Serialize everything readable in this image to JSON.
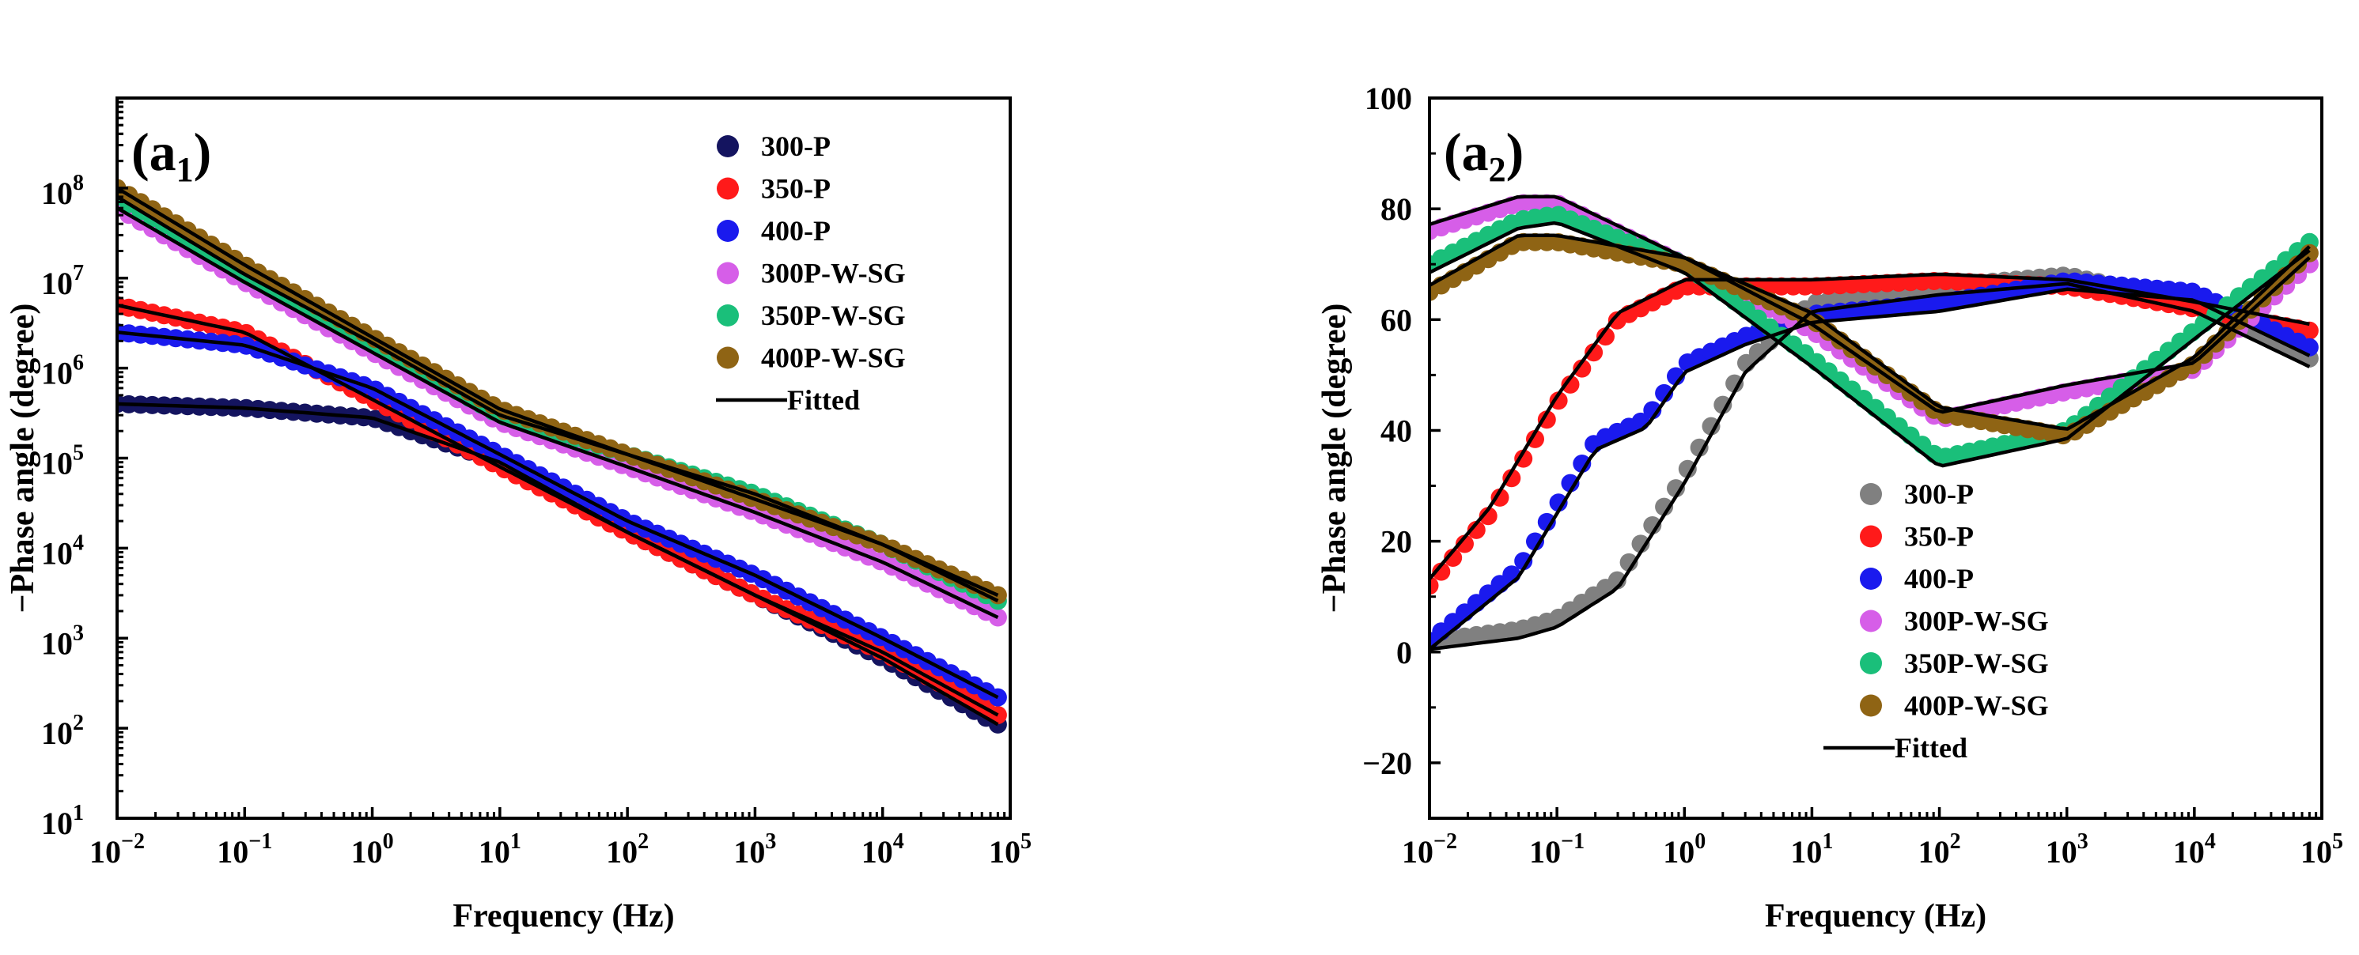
{
  "chart_data": [
    {
      "panel": "(a1)",
      "panel_label": {
        "main": "(a",
        "sub": "1",
        "close": ")"
      },
      "type": "scatter",
      "xlabel": "Frequency (Hz)",
      "ylabel": "−Phase angle (degree)",
      "xscale": "log",
      "yscale": "log",
      "xlim": [
        0.01,
        100000
      ],
      "ylim": [
        10,
        1000000000
      ],
      "x_ticks": [
        {
          "exp": -2,
          "base": "10",
          "sup": "−2"
        },
        {
          "exp": -1,
          "base": "10",
          "sup": "−1"
        },
        {
          "exp": 0,
          "base": "10",
          "sup": "0"
        },
        {
          "exp": 1,
          "base": "10",
          "sup": "1"
        },
        {
          "exp": 2,
          "base": "10",
          "sup": "2"
        },
        {
          "exp": 3,
          "base": "10",
          "sup": "3"
        },
        {
          "exp": 4,
          "base": "10",
          "sup": "4"
        },
        {
          "exp": 5,
          "base": "10",
          "sup": "5"
        }
      ],
      "y_ticks": [
        {
          "exp": 1,
          "base": "10",
          "sup": "1"
        },
        {
          "exp": 2,
          "base": "10",
          "sup": "2"
        },
        {
          "exp": 3,
          "base": "10",
          "sup": "3"
        },
        {
          "exp": 4,
          "base": "10",
          "sup": "4"
        },
        {
          "exp": 5,
          "base": "10",
          "sup": "5"
        },
        {
          "exp": 6,
          "base": "10",
          "sup": "6"
        },
        {
          "exp": 7,
          "base": "10",
          "sup": "7"
        },
        {
          "exp": 8,
          "base": "10",
          "sup": "8"
        }
      ],
      "legend_position": "top-right",
      "series": [
        {
          "name": "300-P",
          "color": "#14145f",
          "points": [
            [
              0.01,
              400000
            ],
            [
              0.1,
              360000
            ],
            [
              1,
              280000
            ],
            [
              10,
              90000
            ],
            [
              100,
              15000
            ],
            [
              1000,
              3000
            ],
            [
              10000,
              600
            ],
            [
              80000,
              110
            ]
          ]
        },
        {
          "name": "350-P",
          "color": "#ff1a1a",
          "points": [
            [
              0.01,
              5000000
            ],
            [
              0.1,
              2500000
            ],
            [
              1,
              450000
            ],
            [
              10,
              80000
            ],
            [
              100,
              15000
            ],
            [
              1000,
              3000
            ],
            [
              10000,
              700
            ],
            [
              80000,
              140
            ]
          ]
        },
        {
          "name": "400-P",
          "color": "#1a1aee",
          "points": [
            [
              0.01,
              2500000
            ],
            [
              0.1,
              1800000
            ],
            [
              1,
              600000
            ],
            [
              10,
              110000
            ],
            [
              100,
              20000
            ],
            [
              1000,
              5000
            ],
            [
              10000,
              1000
            ],
            [
              80000,
              220
            ]
          ]
        },
        {
          "name": "300P-W-SG",
          "color": "#d65ee8",
          "points": [
            [
              0.01,
              60000000
            ],
            [
              0.1,
              9000000
            ],
            [
              1,
              1500000
            ],
            [
              10,
              250000
            ],
            [
              100,
              80000
            ],
            [
              1000,
              25000
            ],
            [
              10000,
              7000
            ],
            [
              80000,
              1700
            ]
          ]
        },
        {
          "name": "350P-W-SG",
          "color": "#1abf7a",
          "points": [
            [
              0.01,
              80000000
            ],
            [
              0.1,
              11000000
            ],
            [
              1,
              1900000
            ],
            [
              10,
              300000
            ],
            [
              100,
              110000
            ],
            [
              1000,
              40000
            ],
            [
              10000,
              11000
            ],
            [
              80000,
              2600
            ]
          ]
        },
        {
          "name": "400P-W-SG",
          "color": "#8f6414",
          "points": [
            [
              0.01,
              100000000
            ],
            [
              0.1,
              14000000
            ],
            [
              1,
              2200000
            ],
            [
              10,
              350000
            ],
            [
              100,
              110000
            ],
            [
              1000,
              35000
            ],
            [
              10000,
              11000
            ],
            [
              80000,
              3000
            ]
          ]
        }
      ],
      "fitted_label": "Fitted",
      "fitted_color": "#000000"
    },
    {
      "panel": "(a2)",
      "panel_label": {
        "main": "(a",
        "sub": "2",
        "close": ")"
      },
      "type": "scatter",
      "xlabel": "Frequency (Hz)",
      "ylabel": "−Phase angle (degree)",
      "xscale": "log",
      "yscale": "linear",
      "xlim": [
        0.01,
        100000
      ],
      "ylim": [
        -30,
        100
      ],
      "x_ticks": [
        {
          "exp": -2,
          "base": "10",
          "sup": "−2"
        },
        {
          "exp": -1,
          "base": "10",
          "sup": "−1"
        },
        {
          "exp": 0,
          "base": "10",
          "sup": "0"
        },
        {
          "exp": 1,
          "base": "10",
          "sup": "1"
        },
        {
          "exp": 2,
          "base": "10",
          "sup": "2"
        },
        {
          "exp": 3,
          "base": "10",
          "sup": "3"
        },
        {
          "exp": 4,
          "base": "10",
          "sup": "4"
        },
        {
          "exp": 5,
          "base": "10",
          "sup": "5"
        }
      ],
      "y_ticks": [
        {
          "value": -20,
          "label": "−20"
        },
        {
          "value": 0,
          "label": "0"
        },
        {
          "value": 20,
          "label": "20"
        },
        {
          "value": 40,
          "label": "40"
        },
        {
          "value": 60,
          "label": "60"
        },
        {
          "value": 80,
          "label": "80"
        },
        {
          "value": 100,
          "label": "100"
        }
      ],
      "legend_position": "bottom-center",
      "series": [
        {
          "name": "300-P",
          "color": "#808080",
          "points": [
            [
              0.01,
              2
            ],
            [
              0.05,
              4
            ],
            [
              0.1,
              6
            ],
            [
              0.3,
              13
            ],
            [
              1,
              32
            ],
            [
              3,
              52
            ],
            [
              10,
              63
            ],
            [
              100,
              66
            ],
            [
              1000,
              68
            ],
            [
              10000,
              63
            ],
            [
              80000,
              53
            ]
          ]
        },
        {
          "name": "350-P",
          "color": "#ff1a1a",
          "points": [
            [
              0.01,
              12
            ],
            [
              0.03,
              25
            ],
            [
              0.1,
              45
            ],
            [
              0.3,
              60
            ],
            [
              1,
              66
            ],
            [
              3,
              66
            ],
            [
              10,
              66
            ],
            [
              100,
              67
            ],
            [
              1000,
              66
            ],
            [
              10000,
              62
            ],
            [
              80000,
              58
            ]
          ]
        },
        {
          "name": "400-P",
          "color": "#1a1aee",
          "points": [
            [
              0.01,
              2
            ],
            [
              0.05,
              15
            ],
            [
              0.2,
              38
            ],
            [
              0.5,
              42
            ],
            [
              1,
              52
            ],
            [
              3,
              57
            ],
            [
              10,
              61
            ],
            [
              100,
              63
            ],
            [
              1000,
              67
            ],
            [
              10000,
              65
            ],
            [
              80000,
              55
            ]
          ]
        },
        {
          "name": "300P-W-SG",
          "color": "#d65ee8",
          "points": [
            [
              0.01,
              76
            ],
            [
              0.05,
              81
            ],
            [
              0.1,
              81
            ],
            [
              1,
              70
            ],
            [
              10,
              58
            ],
            [
              100,
              42
            ],
            [
              1000,
              47
            ],
            [
              10000,
              51
            ],
            [
              80000,
              70
            ]
          ]
        },
        {
          "name": "350P-W-SG",
          "color": "#1abf7a",
          "points": [
            [
              0.01,
              70
            ],
            [
              0.05,
              78
            ],
            [
              0.1,
              79
            ],
            [
              1,
              70
            ],
            [
              10,
              53
            ],
            [
              100,
              35
            ],
            [
              1000,
              40
            ],
            [
              10000,
              58
            ],
            [
              80000,
              74
            ]
          ]
        },
        {
          "name": "400P-W-SG",
          "color": "#8f6414",
          "points": [
            [
              0.01,
              65
            ],
            [
              0.05,
              74
            ],
            [
              0.1,
              74
            ],
            [
              1,
              70
            ],
            [
              10,
              60
            ],
            [
              100,
              43
            ],
            [
              1000,
              39
            ],
            [
              10000,
              52
            ],
            [
              80000,
              72
            ]
          ]
        }
      ],
      "fitted_label": "Fitted",
      "fitted_color": "#000000"
    }
  ]
}
